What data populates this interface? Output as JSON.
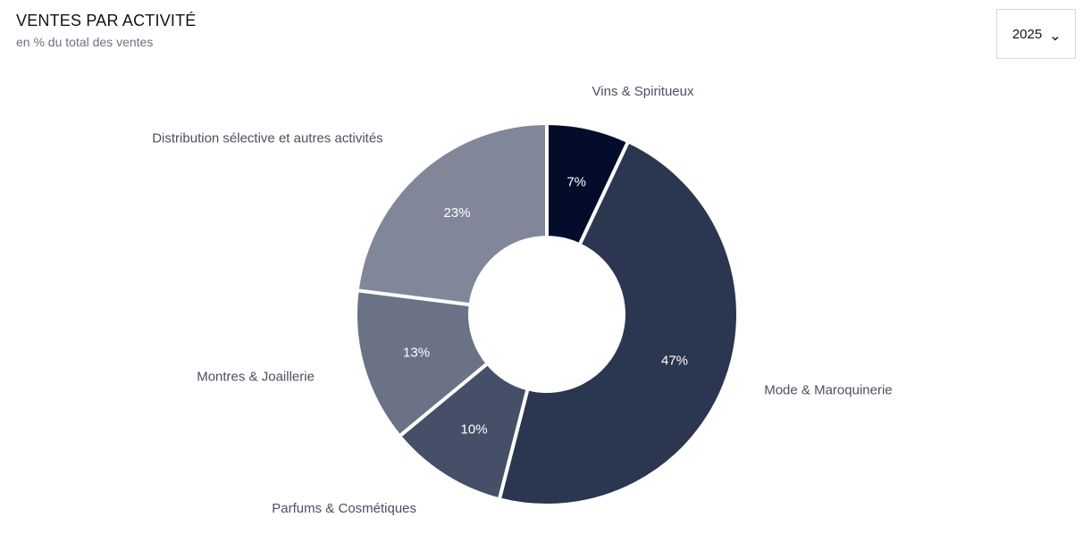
{
  "header": {
    "title": "VENTES PAR ACTIVITÉ",
    "subtitle": "en % du total des ventes"
  },
  "year_select": {
    "value": "2025",
    "icon": "chevron-down-icon"
  },
  "chart_data": {
    "type": "pie",
    "style": "donut",
    "unit": "%",
    "slices": [
      {
        "category": "Vins & Spiritueux",
        "value": 7,
        "label": "7%",
        "color": "#030d2b"
      },
      {
        "category": "Mode & Maroquinerie",
        "value": 47,
        "label": "47%",
        "color": "#2b3650"
      },
      {
        "category": "Parfums & Cosmétiques",
        "value": 10,
        "label": "10%",
        "color": "#454f68"
      },
      {
        "category": "Montres & Joaillerie",
        "value": 13,
        "label": "13%",
        "color": "#6b7286"
      },
      {
        "category": "Distribution sélective et autres activités",
        "value": 23,
        "label": "23%",
        "color": "#818798"
      }
    ],
    "start_angle": "top",
    "direction": "clockwise",
    "legend": "none"
  }
}
